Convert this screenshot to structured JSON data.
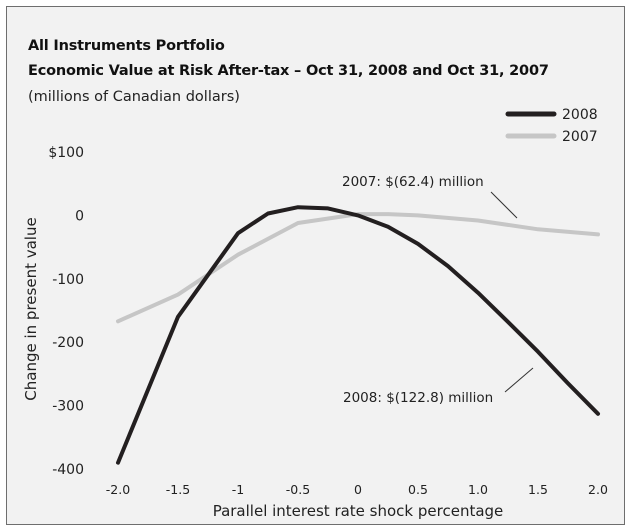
{
  "chart_data": {
    "type": "line",
    "title": "All Instruments Portfolio",
    "subtitle": "Economic Value at Risk After-tax – Oct 31, 2008 and Oct 31, 2007",
    "units_note": "(millions of Canadian dollars)",
    "xlabel": "Parallel interest rate shock percentage",
    "ylabel": "Change in present value",
    "xlim": [
      -2.0,
      2.0
    ],
    "ylim": [
      -400,
      100
    ],
    "x_ticks": [
      -2.0,
      -1.5,
      -1,
      -0.5,
      0,
      0.5,
      1.0,
      1.5,
      2.0
    ],
    "x_tick_labels": [
      "-2.0",
      "-1.5",
      "-1",
      "-0.5",
      "0",
      "0.5",
      "1.0",
      "1.5",
      "2.0"
    ],
    "y_ticks": [
      100,
      0,
      -100,
      -200,
      -300,
      -400
    ],
    "y_tick_labels": [
      "$100",
      "0",
      "-100",
      "-200",
      "-300",
      "-400"
    ],
    "grid": false,
    "legend_position": "top-right",
    "series": [
      {
        "name": "2008",
        "color": "#231f20",
        "x": [
          -2.0,
          -1.5,
          -1.0,
          -0.75,
          -0.5,
          -0.25,
          0,
          0.25,
          0.5,
          0.75,
          1.0,
          1.25,
          1.5,
          1.75,
          2.0
        ],
        "values": [
          -390,
          -160,
          -28,
          3,
          13,
          11,
          0,
          -18,
          -45,
          -80,
          -122,
          -168,
          -215,
          -265,
          -313
        ]
      },
      {
        "name": "2007",
        "color": "#c6c6c6",
        "x": [
          -2.0,
          -1.5,
          -1.0,
          -0.5,
          0,
          0.25,
          0.5,
          1.0,
          1.5,
          2.0
        ],
        "values": [
          -167,
          -125,
          -62,
          -12,
          2,
          2,
          0,
          -8,
          -22,
          -30
        ]
      }
    ],
    "annotations": [
      {
        "text": "2007: $(62.4) million"
      },
      {
        "text": "2008: $(122.8) million"
      }
    ]
  }
}
